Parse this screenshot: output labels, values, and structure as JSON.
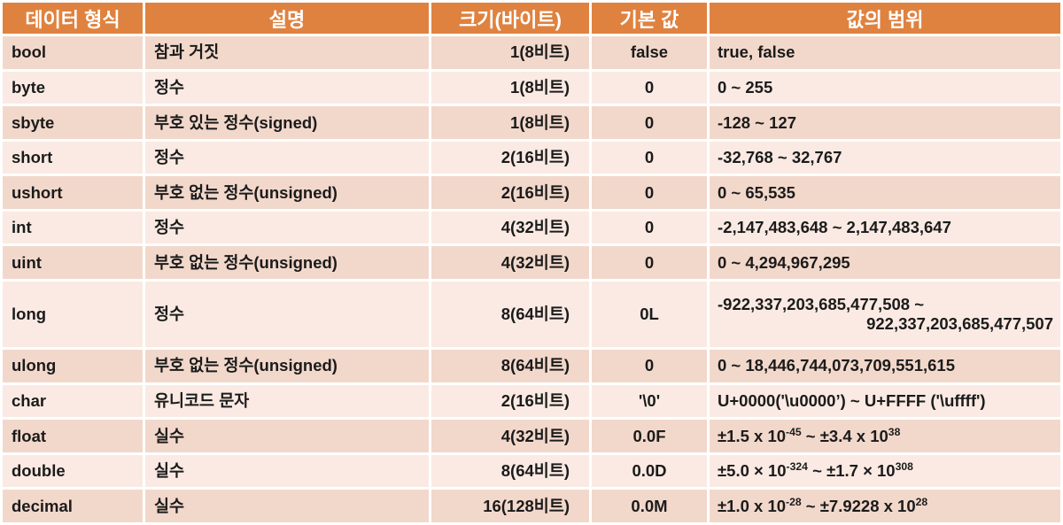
{
  "colors": {
    "header_bg": "#E0823F",
    "header_text": "#FFFFFF",
    "row_odd_bg": "#F2D8CB",
    "row_even_bg": "#FAEAE3",
    "body_text": "#1B1B1B",
    "grid": "#FFFFFF"
  },
  "table": {
    "columns": [
      "데이터 형식",
      "설명",
      "크기(바이트)",
      "기본 값",
      "값의 범위"
    ],
    "rows": [
      {
        "type": "bool",
        "description": "참과 거짓",
        "size": "1(8비트)",
        "default": "false",
        "range": "true, false"
      },
      {
        "type": "byte",
        "description": "정수",
        "size": "1(8비트)",
        "default": "0",
        "range": "0 ~ 255"
      },
      {
        "type": "sbyte",
        "description": "부호 있는 정수(signed)",
        "size": "1(8비트)",
        "default": "0",
        "range": "-128 ~ 127"
      },
      {
        "type": "short",
        "description": "정수",
        "size": "2(16비트)",
        "default": "0",
        "range": "-32,768 ~ 32,767"
      },
      {
        "type": "ushort",
        "description": "부호 없는 정수(unsigned)",
        "size": "2(16비트)",
        "default": "0",
        "range": "0 ~ 65,535"
      },
      {
        "type": "int",
        "description": "정수",
        "size": "4(32비트)",
        "default": "0",
        "range": "-2,147,483,648 ~ 2,147,483,647"
      },
      {
        "type": "uint",
        "description": "부호 없는 정수(unsigned)",
        "size": "4(32비트)",
        "default": "0",
        "range": "0 ~ 4,294,967,295"
      },
      {
        "type": "long",
        "description": "정수",
        "size": "8(64비트)",
        "default": "0L",
        "range": "-922,337,203,685,477,508 ~\n922,337,203,685,477,507",
        "tall": true
      },
      {
        "type": "ulong",
        "description": "부호 없는 정수(unsigned)",
        "size": "8(64비트)",
        "default": "0",
        "range": "0 ~ 18,446,744,073,709,551,615"
      },
      {
        "type": "char",
        "description": "유니코드 문자",
        "size": "2(16비트)",
        "default": "'\\0'",
        "range": "U+0000('\\u0000’) ~ U+FFFF ('\\uffff')"
      },
      {
        "type": "float",
        "description": "실수",
        "size": "4(32비트)",
        "default": "0.0F",
        "range": "±1.5 x 10^{-45} ~ ±3.4 x 10^{38}"
      },
      {
        "type": "double",
        "description": "실수",
        "size": "8(64비트)",
        "default": "0.0D",
        "range": "±5.0 × 10^{-324} ~ ±1.7 × 10^{308}"
      },
      {
        "type": "decimal",
        "description": "실수",
        "size": "16(128비트)",
        "default": "0.0M",
        "range": "±1.0 x 10^{-28} ~ ±7.9228 x 10^{28}"
      }
    ]
  }
}
